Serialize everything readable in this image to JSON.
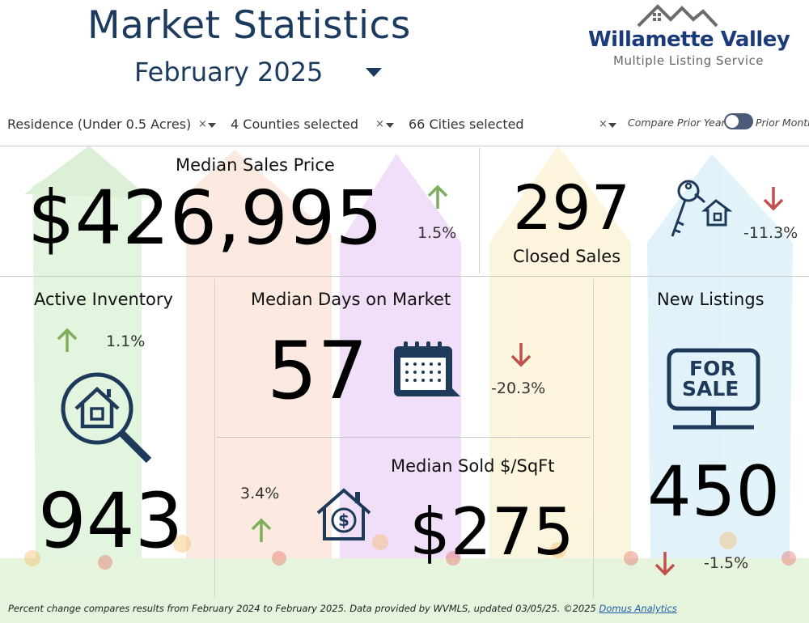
{
  "header": {
    "title": "Market Statistics",
    "subtitle": "February 2025",
    "logo_name": "Willamette Valley",
    "logo_sub": "Multiple Listing Service"
  },
  "filters": {
    "property_type": "Residence (Under 0.5 Acres)",
    "counties": "4 Counties selected",
    "cities": "66 Cities selected",
    "clear_symbol": "×",
    "compare_left": "Compare Prior Year",
    "compare_right": "Prior Month"
  },
  "metrics": {
    "median_price": {
      "label": "Median Sales Price",
      "value": "$426,995",
      "change": "1.5%",
      "direction": "up"
    },
    "closed_sales": {
      "label": "Closed Sales",
      "value": "297",
      "change": "-11.3%",
      "direction": "down"
    },
    "active_inventory": {
      "label": "Active Inventory",
      "value": "943",
      "change": "1.1%",
      "direction": "up"
    },
    "days_on_market": {
      "label": "Median Days on Market",
      "value": "57",
      "change": "-20.3%",
      "direction": "down"
    },
    "new_listings": {
      "label": "New Listings",
      "value": "450",
      "change": "-1.5%",
      "direction": "down"
    },
    "sold_sqft": {
      "label": "Median Sold $/SqFt",
      "value": "$275",
      "change": "3.4%",
      "direction": "up"
    }
  },
  "sign": {
    "line1": "FOR",
    "line2": "SALE"
  },
  "footer": {
    "text": "Percent change compares results from February 2024 to February 2025.  Data provided by WVMLS, updated 03/05/25. ©2025 ",
    "link": "Domus Analytics"
  },
  "colors": {
    "navy": "#1b3a5e",
    "up_green": "#7fae5a",
    "down_red": "#c0504d",
    "icon_navy": "#1e3a5a"
  }
}
